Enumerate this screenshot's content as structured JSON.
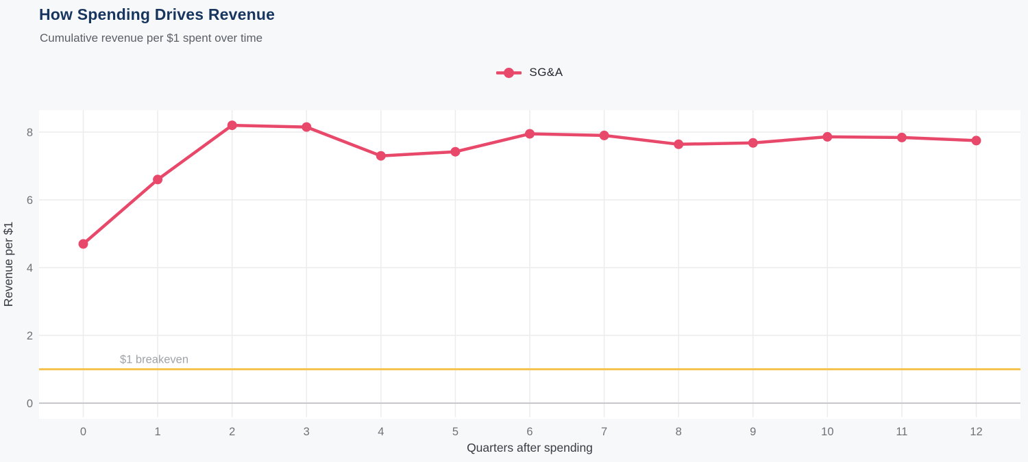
{
  "header": {
    "title": "How Spending Drives Revenue",
    "subtitle": "Cumulative revenue per $1 spent over time"
  },
  "legend": {
    "position": "top-center",
    "items": [
      {
        "label": "SG&A",
        "color": "#e8486a",
        "marker": "line-circle-icon"
      }
    ]
  },
  "chart_data": {
    "type": "line",
    "title": "How Spending Drives Revenue",
    "subtitle": "Cumulative revenue per $1 spent over time",
    "xlabel": "Quarters after spending",
    "ylabel": "Revenue per $1",
    "x": [
      0,
      1,
      2,
      3,
      4,
      5,
      6,
      7,
      8,
      9,
      10,
      11,
      12
    ],
    "series": [
      {
        "name": "SG&A",
        "color": "#e8486a",
        "values": [
          4.7,
          6.6,
          8.2,
          8.15,
          7.3,
          7.42,
          7.95,
          7.9,
          7.64,
          7.68,
          7.86,
          7.84,
          7.75
        ]
      }
    ],
    "x_ticks": [
      0,
      1,
      2,
      3,
      4,
      5,
      6,
      7,
      8,
      9,
      10,
      11,
      12
    ],
    "y_ticks": [
      0,
      2,
      4,
      6,
      8
    ],
    "xlim": [
      -0.59,
      12.59
    ],
    "ylim": [
      -0.46,
      8.65
    ],
    "grid": true,
    "legend_position": "top-center",
    "reference_line": {
      "value": 1,
      "label": "$1 breakeven",
      "color": "#f6c44e"
    },
    "colors": {
      "title": "#17355e",
      "subtitle": "#5a5f66",
      "series": "#e8486a",
      "reference": "#f6c44e",
      "zero_line": "#c5c7ca",
      "gridline": "#ececec",
      "plot_background": "#ffffff",
      "page_background": "#f7f8fa"
    }
  }
}
